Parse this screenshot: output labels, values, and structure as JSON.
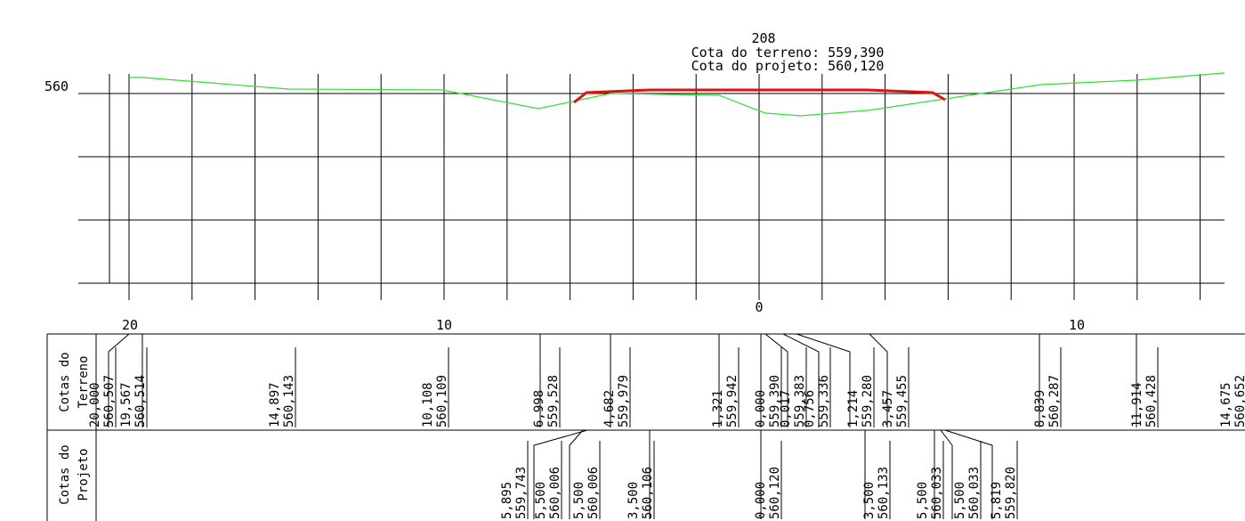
{
  "section": {
    "station": "208",
    "terrain_label": "Cota do terreno: 559,390",
    "project_label": "Cota do projeto: 560,120",
    "elevation_label": "560"
  },
  "axis": {
    "ticks": [
      {
        "value": "20",
        "offset": -20
      },
      {
        "value": "10",
        "offset": -10
      },
      {
        "value": "0",
        "offset": 0
      },
      {
        "value": "10",
        "offset": 10
      }
    ]
  },
  "table": {
    "terrain_header": [
      "Cotas do",
      "Terreno"
    ],
    "project_header": [
      "Cotas do",
      "Projeto"
    ],
    "terrain_values": [
      {
        "offset": "20,000",
        "elev": "560,507"
      },
      {
        "offset": "19,567",
        "elev": "560,514"
      },
      {
        "offset": "14,897",
        "elev": "560,143"
      },
      {
        "offset": "10,108",
        "elev": "560,109"
      },
      {
        "offset": "6,998",
        "elev": "559,528"
      },
      {
        "offset": "4,682",
        "elev": "559,979"
      },
      {
        "offset": "1,321",
        "elev": "559,942"
      },
      {
        "offset": "0,000",
        "elev": "559,390"
      },
      {
        "offset": "0,017",
        "elev": "559,383"
      },
      {
        "offset": "0,756",
        "elev": "559,336"
      },
      {
        "offset": "1,214",
        "elev": "559,280"
      },
      {
        "offset": "3,457",
        "elev": "559,455"
      },
      {
        "offset": "8,839",
        "elev": "560,287"
      },
      {
        "offset": "11,914",
        "elev": "560,428"
      },
      {
        "offset": "14,675",
        "elev": "560,652"
      }
    ],
    "project_values": [
      {
        "offset": "5,895",
        "elev": "559,743"
      },
      {
        "offset": "5,500",
        "elev": "560,006"
      },
      {
        "offset": "5,500",
        "elev": "560,006"
      },
      {
        "offset": "3,500",
        "elev": "560,106"
      },
      {
        "offset": "0,000",
        "elev": "560,120"
      },
      {
        "offset": "3,500",
        "elev": "560,133"
      },
      {
        "offset": "5,500",
        "elev": "560,033"
      },
      {
        "offset": "5,500",
        "elev": "560,033"
      },
      {
        "offset": "5,819",
        "elev": "559,820"
      }
    ]
  },
  "colors": {
    "terrain": "#33dd33",
    "project": "#dd1111",
    "lines": "#000000"
  }
}
